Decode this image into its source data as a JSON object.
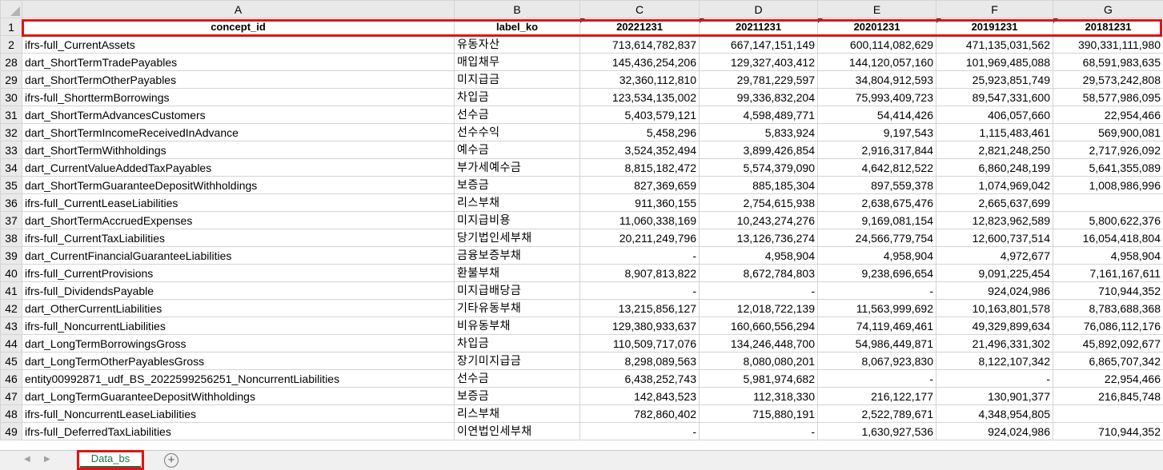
{
  "columns": [
    "A",
    "B",
    "C",
    "D",
    "E",
    "F",
    "G"
  ],
  "header_row": {
    "row": "1",
    "cells": [
      "concept_id",
      "label_ko",
      "20221231",
      "20211231",
      "20201231",
      "20191231",
      "20181231"
    ]
  },
  "rows": [
    {
      "row": "2",
      "cells": [
        "ifrs-full_CurrentAssets",
        "유동자산",
        "713,614,782,837",
        "667,147,151,149",
        "600,114,082,629",
        "471,135,031,562",
        "390,331,111,980"
      ]
    },
    {
      "row": "28",
      "cells": [
        "dart_ShortTermTradePayables",
        "매입채무",
        "145,436,254,206",
        "129,327,403,412",
        "144,120,057,160",
        "101,969,485,088",
        "68,591,983,635"
      ]
    },
    {
      "row": "29",
      "cells": [
        "dart_ShortTermOtherPayables",
        "미지급금",
        "32,360,112,810",
        "29,781,229,597",
        "34,804,912,593",
        "25,923,851,749",
        "29,573,242,808"
      ]
    },
    {
      "row": "30",
      "cells": [
        "ifrs-full_ShorttermBorrowings",
        "차입금",
        "123,534,135,002",
        "99,336,832,204",
        "75,993,409,723",
        "89,547,331,600",
        "58,577,986,095"
      ]
    },
    {
      "row": "31",
      "cells": [
        "dart_ShortTermAdvancesCustomers",
        "선수금",
        "5,403,579,121",
        "4,598,489,771",
        "54,414,426",
        "406,057,660",
        "22,954,466"
      ]
    },
    {
      "row": "32",
      "cells": [
        "dart_ShortTermIncomeReceivedInAdvance",
        "선수수익",
        "5,458,296",
        "5,833,924",
        "9,197,543",
        "1,115,483,461",
        "569,900,081"
      ]
    },
    {
      "row": "33",
      "cells": [
        "dart_ShortTermWithholdings",
        "예수금",
        "3,524,352,494",
        "3,899,426,854",
        "2,916,317,844",
        "2,821,248,250",
        "2,717,926,092"
      ]
    },
    {
      "row": "34",
      "cells": [
        "dart_CurrentValueAddedTaxPayables",
        "부가세예수금",
        "8,815,182,472",
        "5,574,379,090",
        "4,642,812,522",
        "6,860,248,199",
        "5,641,355,089"
      ]
    },
    {
      "row": "35",
      "cells": [
        "dart_ShortTermGuaranteeDepositWithholdings",
        "보증금",
        "827,369,659",
        "885,185,304",
        "897,559,378",
        "1,074,969,042",
        "1,008,986,996"
      ]
    },
    {
      "row": "36",
      "cells": [
        "ifrs-full_CurrentLeaseLiabilities",
        "리스부채",
        "911,360,155",
        "2,754,615,938",
        "2,638,675,476",
        "2,665,637,699",
        ""
      ]
    },
    {
      "row": "37",
      "cells": [
        "dart_ShortTermAccruedExpenses",
        "미지급비용",
        "11,060,338,169",
        "10,243,274,276",
        "9,169,081,154",
        "12,823,962,589",
        "5,800,622,376"
      ]
    },
    {
      "row": "38",
      "cells": [
        "ifrs-full_CurrentTaxLiabilities",
        "당기법인세부채",
        "20,211,249,796",
        "13,126,736,274",
        "24,566,779,754",
        "12,600,737,514",
        "16,054,418,804"
      ]
    },
    {
      "row": "39",
      "cells": [
        "dart_CurrentFinancialGuaranteeLiabilities",
        "금융보증부채",
        "-",
        "4,958,904",
        "4,958,904",
        "4,972,677",
        "4,958,904"
      ]
    },
    {
      "row": "40",
      "cells": [
        "ifrs-full_CurrentProvisions",
        "환불부채",
        "8,907,813,822",
        "8,672,784,803",
        "9,238,696,654",
        "9,091,225,454",
        "7,161,167,611"
      ]
    },
    {
      "row": "41",
      "cells": [
        "ifrs-full_DividendsPayable",
        "미지급배당금",
        "-",
        "-",
        "-",
        "924,024,986",
        "710,944,352"
      ]
    },
    {
      "row": "42",
      "cells": [
        "dart_OtherCurrentLiabilities",
        "기타유동부채",
        "13,215,856,127",
        "12,018,722,139",
        "11,563,999,692",
        "10,163,801,578",
        "8,783,688,368"
      ]
    },
    {
      "row": "43",
      "cells": [
        "ifrs-full_NoncurrentLiabilities",
        "비유동부채",
        "129,380,933,637",
        "160,660,556,294",
        "74,119,469,461",
        "49,329,899,634",
        "76,086,112,176"
      ]
    },
    {
      "row": "44",
      "cells": [
        "dart_LongTermBorrowingsGross",
        "차입금",
        "110,509,717,076",
        "134,246,448,700",
        "54,986,449,871",
        "21,496,331,302",
        "45,892,092,677"
      ]
    },
    {
      "row": "45",
      "cells": [
        "dart_LongTermOtherPayablesGross",
        "장기미지급금",
        "8,298,089,563",
        "8,080,080,201",
        "8,067,923,830",
        "8,122,107,342",
        "6,865,707,342"
      ]
    },
    {
      "row": "46",
      "cells": [
        "entity00992871_udf_BS_2022599256251_NoncurrentLiabilities",
        "선수금",
        "6,438,252,743",
        "5,981,974,682",
        "-",
        "-",
        "22,954,466"
      ]
    },
    {
      "row": "47",
      "cells": [
        "dart_LongTermGuaranteeDepositWithholdings",
        "보증금",
        "142,843,523",
        "112,318,330",
        "216,122,177",
        "130,901,377",
        "216,845,748"
      ]
    },
    {
      "row": "48",
      "cells": [
        "ifrs-full_NoncurrentLeaseLiabilities",
        "리스부채",
        "782,860,402",
        "715,880,191",
        "2,522,789,671",
        "4,348,954,805",
        ""
      ]
    },
    {
      "row": "49",
      "cells": [
        "ifrs-full_DeferredTaxLiabilities",
        "이연법인세부채",
        "-",
        "-",
        "1,630,927,536",
        "924,024,986",
        "710,944,352"
      ]
    }
  ],
  "sheet_tabs": {
    "active_tab": "Data_bs",
    "add_icon": "plus-circle-icon",
    "nav_prev_icon": "triangle-left-icon",
    "nav_next_icon": "triangle-right-icon"
  },
  "colors": {
    "highlight": "#e01414",
    "tab_accent": "#1e7145",
    "header_bg": "#e9e9e9",
    "gridline": "#d4d4d4"
  }
}
